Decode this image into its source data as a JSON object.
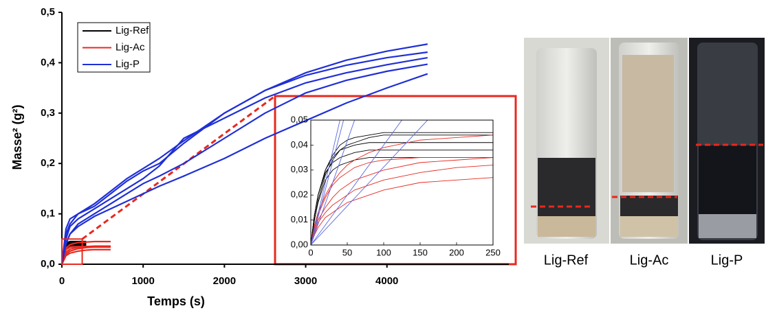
{
  "chart_data": [
    {
      "type": "line",
      "x_label": "Temps (s)",
      "y_label": "Masse² (g²)",
      "xlim": [
        0,
        5500
      ],
      "ylim": [
        0,
        0.5
      ],
      "xticks": [
        0,
        1000,
        2000,
        3000,
        4000
      ],
      "yticks": [
        {
          "value": 0,
          "label": "0,0"
        },
        {
          "value": 0.1,
          "label": "0,1"
        },
        {
          "value": 0.2,
          "label": "0,2"
        },
        {
          "value": 0.3,
          "label": "0,3"
        },
        {
          "value": 0.4,
          "label": "0,4"
        },
        {
          "value": 0.5,
          "label": "0,5"
        }
      ],
      "legend": "upper left",
      "series": [
        {
          "name": "Lig-Ref",
          "color": "#000000",
          "x": [
            0,
            50,
            100,
            150,
            200,
            250,
            300
          ],
          "values": [
            [
              0,
              0.042,
              0.045,
              0.045,
              0.045,
              0.045,
              0.045
            ],
            [
              0,
              0.04,
              0.044,
              0.044,
              0.044,
              0.044,
              0.044
            ],
            [
              0,
              0.039,
              0.041,
              0.041,
              0.041,
              0.041,
              0.041
            ],
            [
              0,
              0.036,
              0.038,
              0.038,
              0.038,
              0.038,
              0.038
            ],
            [
              0,
              0.033,
              0.035,
              0.035,
              0.035,
              0.035,
              0.035
            ]
          ]
        },
        {
          "name": "Lig-Ac",
          "color": "#e8281e",
          "x": [
            0,
            50,
            100,
            200,
            300,
            400,
            500,
            600
          ],
          "values": [
            [
              0,
              0.032,
              0.039,
              0.043,
              0.044,
              0.045,
              0.045,
              0.045
            ],
            [
              0,
              0.029,
              0.034,
              0.035,
              0.035,
              0.035,
              0.035,
              0.035
            ],
            [
              0,
              0.024,
              0.03,
              0.034,
              0.035,
              0.036,
              0.036,
              0.036
            ],
            [
              0,
              0.02,
              0.026,
              0.031,
              0.033,
              0.034,
              0.034,
              0.034
            ],
            [
              0,
              0.017,
              0.022,
              0.026,
              0.028,
              0.029,
              0.029,
              0.029
            ]
          ]
        },
        {
          "name": "Lig-P",
          "color": "#1f2fd6",
          "x": [
            0,
            50,
            100,
            200,
            400,
            600,
            800,
            1000,
            1200,
            1500,
            2000,
            2500,
            3000,
            3500,
            4000,
            4500
          ],
          "values": [
            [
              0,
              0.06,
              0.08,
              0.1,
              0.12,
              0.145,
              0.17,
              0.19,
              0.21,
              0.245,
              0.3,
              0.345,
              0.38,
              0.405,
              0.423,
              0.437
            ],
            [
              0,
              0.07,
              0.09,
              0.1,
              0.115,
              0.14,
              0.165,
              0.185,
              0.2,
              0.24,
              0.3,
              0.345,
              0.375,
              0.395,
              0.41,
              0.421
            ],
            [
              0,
              0.05,
              0.075,
              0.09,
              0.11,
              0.13,
              0.15,
              0.17,
              0.195,
              0.25,
              0.29,
              0.33,
              0.36,
              0.38,
              0.396,
              0.41
            ],
            [
              0,
              0.04,
              0.06,
              0.08,
              0.1,
              0.12,
              0.14,
              0.16,
              0.175,
              0.2,
              0.25,
              0.3,
              0.34,
              0.365,
              0.383,
              0.397
            ],
            [
              0,
              0.04,
              0.06,
              0.075,
              0.095,
              0.11,
              0.125,
              0.14,
              0.155,
              0.175,
              0.21,
              0.25,
              0.285,
              0.32,
              0.35,
              0.378
            ]
          ]
        }
      ]
    },
    {
      "type": "line",
      "xlim": [
        0,
        250
      ],
      "ylim": [
        0,
        0.05
      ],
      "xticks": [
        0,
        50,
        100,
        150,
        200,
        250
      ],
      "yticks": [
        {
          "value": 0,
          "label": "0,00"
        },
        {
          "value": 0.01,
          "label": "0,01"
        },
        {
          "value": 0.02,
          "label": "0,02"
        },
        {
          "value": 0.03,
          "label": "0,03"
        },
        {
          "value": 0.04,
          "label": "0,04"
        },
        {
          "value": 0.05,
          "label": "0,05"
        }
      ],
      "series": [
        {
          "color": "#000000",
          "x": [
            0,
            5,
            10,
            20,
            30,
            40,
            50,
            60,
            80,
            100,
            150,
            200,
            250
          ],
          "values": [
            [
              0,
              0.012,
              0.02,
              0.03,
              0.036,
              0.04,
              0.042,
              0.043,
              0.044,
              0.045,
              0.045,
              0.045,
              0.045
            ],
            [
              0,
              0.01,
              0.018,
              0.028,
              0.034,
              0.038,
              0.04,
              0.041,
              0.043,
              0.044,
              0.044,
              0.044,
              0.044
            ],
            [
              0,
              0.012,
              0.02,
              0.03,
              0.035,
              0.038,
              0.039,
              0.04,
              0.041,
              0.041,
              0.041,
              0.041,
              0.041
            ],
            [
              0,
              0.012,
              0.02,
              0.029,
              0.033,
              0.035,
              0.036,
              0.037,
              0.038,
              0.038,
              0.038,
              0.038,
              0.038
            ],
            [
              0,
              0.01,
              0.017,
              0.026,
              0.03,
              0.032,
              0.033,
              0.034,
              0.035,
              0.035,
              0.035,
              0.035,
              0.035
            ]
          ]
        },
        {
          "color": "#e8281e",
          "x": [
            0,
            5,
            10,
            20,
            30,
            40,
            50,
            60,
            80,
            100,
            150,
            200,
            250
          ],
          "values": [
            [
              0,
              0.008,
              0.013,
              0.02,
              0.025,
              0.029,
              0.032,
              0.034,
              0.037,
              0.039,
              0.042,
              0.043,
              0.044
            ],
            [
              0,
              0.007,
              0.012,
              0.019,
              0.024,
              0.027,
              0.029,
              0.031,
              0.033,
              0.034,
              0.035,
              0.035,
              0.035
            ],
            [
              0,
              0.006,
              0.01,
              0.015,
              0.019,
              0.022,
              0.024,
              0.026,
              0.028,
              0.03,
              0.033,
              0.034,
              0.035
            ],
            [
              0,
              0.005,
              0.009,
              0.013,
              0.016,
              0.018,
              0.02,
              0.022,
              0.024,
              0.026,
              0.029,
              0.031,
              0.032
            ],
            [
              0,
              0.004,
              0.007,
              0.011,
              0.013,
              0.015,
              0.017,
              0.018,
              0.02,
              0.022,
              0.025,
              0.026,
              0.027
            ]
          ]
        },
        {
          "color": "#5a66e0",
          "x": [
            0,
            250
          ],
          "values": [
            [
              0,
              0.3125
            ],
            [
              0,
              0.278
            ],
            [
              0,
              0.208
            ],
            [
              0,
              0.1
            ],
            [
              0,
              0.078
            ]
          ]
        }
      ]
    }
  ],
  "photo_labels": [
    "Lig-Ref",
    "Lig-Ac",
    "Lig-P"
  ]
}
